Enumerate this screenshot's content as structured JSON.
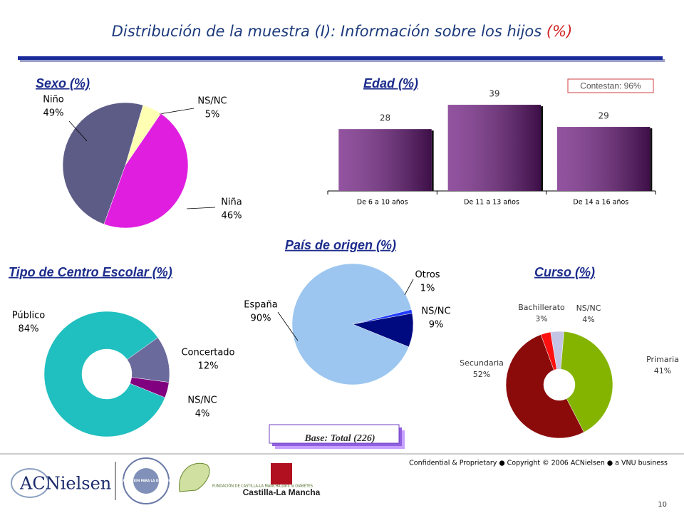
{
  "header": {
    "title": "Distribución de la muestra (I): Información sobre los hijos",
    "title_unit": "(%)"
  },
  "chart_data": [
    {
      "type": "pie",
      "title": "Sexo (%)",
      "categories": [
        "Niño",
        "NS/NC",
        "Niña"
      ],
      "values": [
        49,
        5,
        46
      ],
      "value_labels": [
        "49%",
        "5%",
        "46%"
      ],
      "colors": [
        "#5c5c86",
        "#ffffb4",
        "#e01ee0"
      ]
    },
    {
      "type": "bar",
      "title": "Edad (%)",
      "annotation": "Contestan: 96%",
      "categories": [
        "De 6 a 10 años",
        "De 11 a 13 años",
        "De 14 a 16 años"
      ],
      "values": [
        28,
        39,
        29
      ],
      "color": "#6e1a80"
    },
    {
      "type": "pie",
      "title": "País de origen (%)",
      "categories": [
        "España",
        "Otros",
        "NS/NC"
      ],
      "values": [
        90,
        1,
        9
      ],
      "value_labels": [
        "90%",
        "1%",
        "9%"
      ],
      "colors": [
        "#9cc6f0",
        "#1f3cff",
        "#000a80"
      ]
    },
    {
      "type": "donut",
      "title": "Tipo de Centro Escolar (%)",
      "categories": [
        "Público",
        "Concertado",
        "NS/NC"
      ],
      "values": [
        84,
        12,
        4
      ],
      "value_labels": [
        "84%",
        "12%",
        "4%"
      ],
      "colors": [
        "#20bfc0",
        "#6a6a9c",
        "#800080"
      ]
    },
    {
      "type": "donut",
      "title": "Curso (%)",
      "categories": [
        "Primaria",
        "Secundaria",
        "Bachillerato",
        "NS/NC"
      ],
      "values": [
        41,
        52,
        3,
        4
      ],
      "value_labels": [
        "41%",
        "52%",
        "3%",
        "4%"
      ],
      "colors": [
        "#84b400",
        "#8b0a0a",
        "#ff1010",
        "#c4c4e4"
      ]
    }
  ],
  "base_note": "Base: Total (226)",
  "footer": {
    "confidential": "Confidential & Proprietary ● Copyright © 2006 ACNielsen ● a VNU business",
    "page_number": "10",
    "logos": [
      "ACNielsen",
      "FUNDACION PARA LA DIABETES",
      "FUNDACIÓN DE CASTILLA-LA MANCHA para la DIABETES",
      "Castilla-La Mancha"
    ]
  }
}
